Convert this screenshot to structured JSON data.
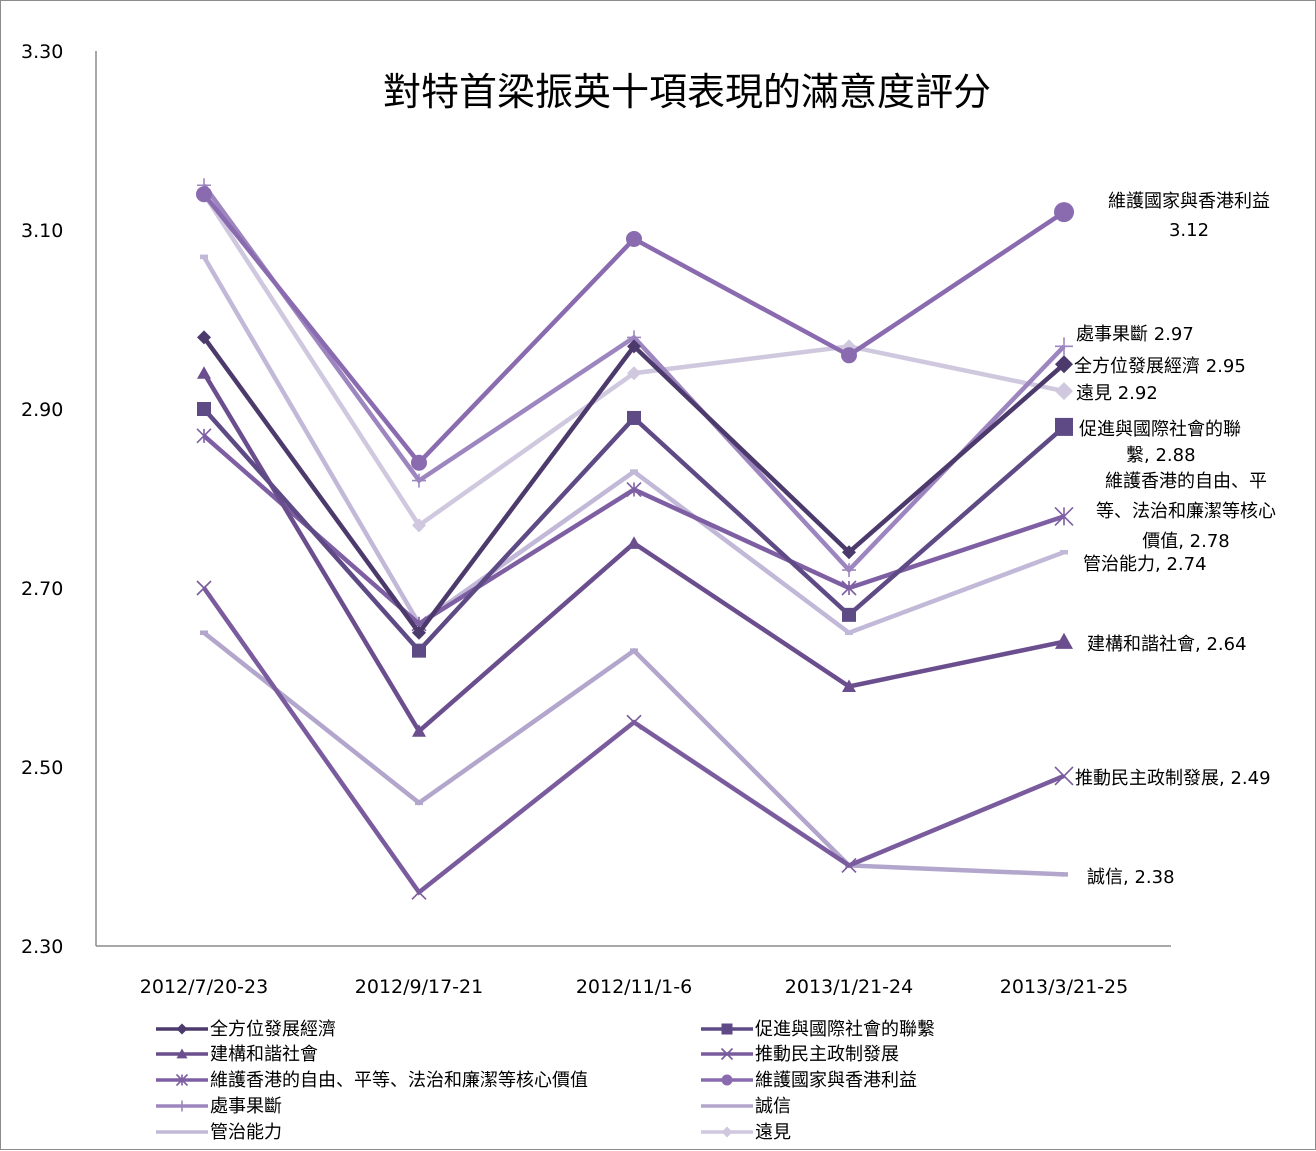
{
  "chart_data": {
    "type": "line",
    "title": "對特首梁振英十項表現的滿意度評分",
    "xlabel": "",
    "ylabel": "",
    "categories": [
      "2012/7/20-23",
      "2012/9/17-21",
      "2012/11/1-6",
      "2013/1/21-24",
      "2013/3/21-25"
    ],
    "ylim": [
      2.3,
      3.3
    ],
    "yticks": [
      "2.30",
      "2.50",
      "2.70",
      "2.90",
      "3.10",
      "3.30"
    ],
    "grid": false,
    "legend_position": "bottom",
    "series": [
      {
        "name": "全方位發展經濟",
        "values": [
          2.98,
          2.65,
          2.97,
          2.74,
          2.95
        ],
        "color": "#4b3a6b",
        "marker": "diamond",
        "end_label": [
          "全方位發展經濟 2.95"
        ]
      },
      {
        "name": "促進與國際社會的聯繫",
        "values": [
          2.9,
          2.63,
          2.89,
          2.67,
          2.88
        ],
        "color": "#5e4a85",
        "marker": "square",
        "end_label": [
          "促進與國際社會的聯",
          "繫, 2.88"
        ]
      },
      {
        "name": "建構和諧社會",
        "values": [
          2.94,
          2.54,
          2.75,
          2.59,
          2.64
        ],
        "color": "#6b4e8e",
        "marker": "triangle",
        "end_label": [
          "建構和諧社會, 2.64"
        ]
      },
      {
        "name": "推動民主政制發展",
        "values": [
          2.7,
          2.36,
          2.55,
          2.39,
          2.49
        ],
        "color": "#7a5c9e",
        "marker": "x",
        "end_label": [
          "推動民主政制發展, 2.49"
        ]
      },
      {
        "name": "維護香港的自由、平等、法治和廉潔等核心價值",
        "values": [
          2.87,
          2.66,
          2.81,
          2.7,
          2.78
        ],
        "color": "#7e5fa3",
        "marker": "star",
        "end_label": [
          "維護香港的自由、平",
          "等、法治和廉潔等核心",
          "價值, 2.78"
        ]
      },
      {
        "name": "維護國家與香港利益",
        "values": [
          3.14,
          2.84,
          3.09,
          2.96,
          3.12
        ],
        "color": "#8a6bb0",
        "marker": "circle",
        "end_label": [
          "維護國家與香港利益",
          "3.12"
        ]
      },
      {
        "name": "處事果斷",
        "values": [
          3.15,
          2.82,
          2.98,
          2.72,
          2.97
        ],
        "color": "#9d86bf",
        "marker": "plus",
        "end_label": [
          "處事果斷 2.97"
        ]
      },
      {
        "name": "誠信",
        "values": [
          2.65,
          2.46,
          2.63,
          2.39,
          2.38
        ],
        "color": "#b3a6cc",
        "marker": "none",
        "end_label": [
          "誠信, 2.38"
        ]
      },
      {
        "name": "管治能力",
        "values": [
          3.07,
          2.66,
          2.83,
          2.65,
          2.74
        ],
        "color": "#c2b8d8",
        "marker": "none",
        "end_label": [
          "管治能力, 2.74"
        ]
      },
      {
        "name": "遠見",
        "values": [
          3.14,
          2.77,
          2.94,
          2.97,
          2.92
        ],
        "color": "#cfc8df",
        "marker": "diamond",
        "end_label": [
          "遠見 2.92"
        ]
      }
    ]
  }
}
